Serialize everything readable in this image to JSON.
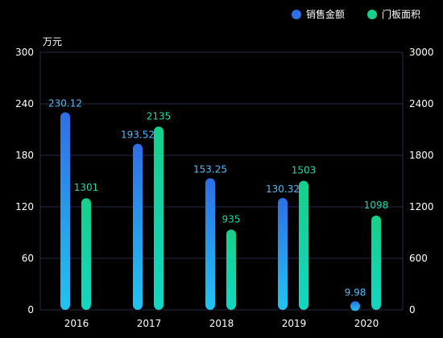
{
  "colors": {
    "background": "#000000",
    "axis_text": "#ffffff",
    "grid": "#2a2c4a",
    "sales_top": "#2f6ee6",
    "sales_bottom": "#22c4f0",
    "area_top": "#16cf8a",
    "area_bottom": "#12d6c2",
    "sales_label": "#58b8f5",
    "area_label": "#22d8a8"
  },
  "chart_data": {
    "type": "bar",
    "categories": [
      "2016",
      "2017",
      "2018",
      "2019",
      "2020"
    ],
    "y_left_unit": "万元",
    "ylim_left": [
      0,
      300
    ],
    "ylim_right": [
      0,
      3000
    ],
    "yticks_left": [
      0,
      60,
      120,
      180,
      240,
      300
    ],
    "yticks_right": [
      0,
      600,
      1200,
      1800,
      2400,
      3000
    ],
    "grid": true,
    "legend_position": "top-right",
    "series": [
      {
        "name": "销售金额",
        "axis": "left",
        "values": [
          230.12,
          193.52,
          153.25,
          130.32,
          9.98
        ],
        "labels": [
          "230.12",
          "193.52",
          "153.25",
          "130.32",
          "9.98"
        ]
      },
      {
        "name": "门板面积",
        "axis": "right",
        "values": [
          1301,
          2135,
          935,
          1503,
          1098
        ],
        "labels": [
          "1301",
          "2135",
          "935",
          "1503",
          "1098"
        ]
      }
    ]
  }
}
